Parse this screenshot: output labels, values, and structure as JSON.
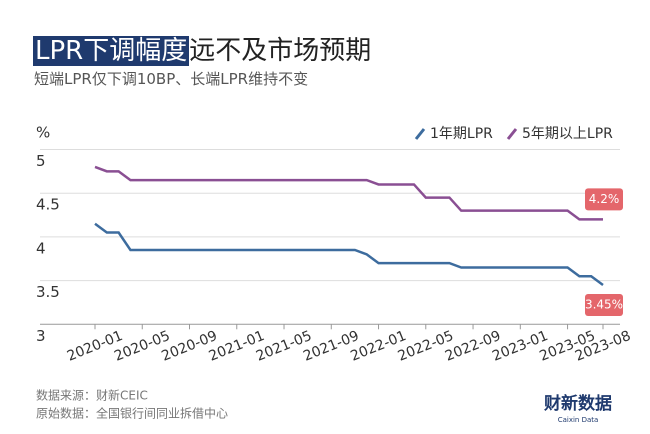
{
  "chart_data": {
    "type": "line",
    "title": {
      "highlight": "LPR下调幅度",
      "rest": "远不及市场预期"
    },
    "subtitle": "短端LPR仅下调10BP、长端LPR维持不变",
    "y_unit": "%",
    "categories": [
      "2020-01",
      null,
      null,
      null,
      "2020-05",
      null,
      null,
      null,
      "2020-09",
      null,
      null,
      null,
      "2021-01",
      null,
      null,
      null,
      "2021-05",
      null,
      null,
      null,
      "2021-09",
      null,
      null,
      null,
      "2022-01",
      null,
      null,
      null,
      "2022-05",
      null,
      null,
      null,
      "2022-09",
      null,
      null,
      null,
      "2023-01",
      null,
      null,
      null,
      "2023-05",
      null,
      null,
      "2023-08"
    ],
    "series": [
      {
        "name": "1年期LPR",
        "color": "#3d6c9e",
        "values": [
          4.15,
          4.05,
          4.05,
          3.85,
          3.85,
          3.85,
          3.85,
          3.85,
          3.85,
          3.85,
          3.85,
          3.85,
          3.85,
          3.85,
          3.85,
          3.85,
          3.85,
          3.85,
          3.85,
          3.85,
          3.85,
          3.85,
          3.85,
          3.8,
          3.7,
          3.7,
          3.7,
          3.7,
          3.7,
          3.7,
          3.7,
          3.65,
          3.65,
          3.65,
          3.65,
          3.65,
          3.65,
          3.65,
          3.65,
          3.65,
          3.65,
          3.55,
          3.55,
          3.45
        ],
        "value_labels": [
          null,
          null,
          null,
          null,
          null,
          null,
          null,
          null,
          null,
          null,
          null,
          null,
          null,
          null,
          null,
          null,
          null,
          null,
          null,
          null,
          null,
          null,
          null,
          null,
          null,
          null,
          null,
          null,
          null,
          null,
          null,
          null,
          null,
          null,
          null,
          null,
          null,
          null,
          null,
          null,
          null,
          null,
          null,
          "3.45%"
        ]
      },
      {
        "name": "5年期以上LPR",
        "color": "#8a4f93",
        "values": [
          4.8,
          4.75,
          4.75,
          4.65,
          4.65,
          4.65,
          4.65,
          4.65,
          4.65,
          4.65,
          4.65,
          4.65,
          4.65,
          4.65,
          4.65,
          4.65,
          4.65,
          4.65,
          4.65,
          4.65,
          4.65,
          4.65,
          4.65,
          4.65,
          4.6,
          4.6,
          4.6,
          4.6,
          4.45,
          4.45,
          4.45,
          4.3,
          4.3,
          4.3,
          4.3,
          4.3,
          4.3,
          4.3,
          4.3,
          4.3,
          4.3,
          4.2,
          4.2,
          4.2
        ],
        "value_labels": [
          null,
          null,
          null,
          null,
          null,
          null,
          null,
          null,
          null,
          null,
          null,
          null,
          null,
          null,
          null,
          null,
          null,
          null,
          null,
          null,
          null,
          null,
          null,
          null,
          null,
          null,
          null,
          null,
          null,
          null,
          null,
          null,
          null,
          null,
          null,
          null,
          null,
          null,
          null,
          null,
          null,
          null,
          null,
          "4.2%"
        ]
      }
    ],
    "ylim": [
      3,
      5
    ],
    "yticks": [
      3,
      3.5,
      4,
      4.5,
      5
    ],
    "grid": true,
    "legend": "top-right",
    "label_color": "#e4666b",
    "source": "数据来源：财新CEIC",
    "original_source": "原始数据：全国银行间同业拆借中心",
    "logo": "财新数据",
    "logo_sub": "Caixin Data"
  }
}
